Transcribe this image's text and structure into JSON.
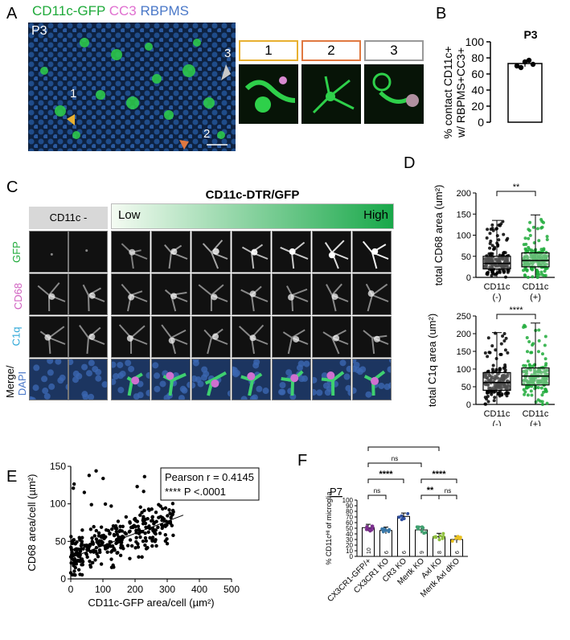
{
  "panelA": {
    "label": "A",
    "channels": [
      {
        "text": "CD11c-GFP",
        "color": "#1faa3a"
      },
      {
        "text": "CC3",
        "color": "#e070d0"
      },
      {
        "text": "RBPMS",
        "color": "#4a78c8"
      }
    ],
    "age": "P3",
    "arrows": [
      "1",
      "2",
      "3"
    ],
    "insets": [
      {
        "label": "1",
        "color": "#e8b030"
      },
      {
        "label": "2",
        "color": "#e07840"
      },
      {
        "label": "3",
        "color": "#999999"
      }
    ]
  },
  "panelB": {
    "label": "B",
    "chart_data": {
      "type": "bar",
      "title": "P3",
      "categories": [
        ""
      ],
      "values": [
        73
      ],
      "points": [
        70,
        68,
        75,
        77,
        72
      ],
      "ylabel_line1": "% contact CD11c+",
      "ylabel_line2": "w/ RBPMS+CC3+",
      "ylim": [
        0,
        100
      ],
      "yticks": [
        0,
        20,
        40,
        60,
        80,
        100
      ]
    }
  },
  "panelC": {
    "label": "C",
    "header": "CD11c-DTR/GFP",
    "neg": "CD11c -",
    "low": "Low",
    "high": "High",
    "rows": [
      {
        "text": "GFP",
        "color": "#1faa3a"
      },
      {
        "text": "CD68",
        "color": "#d060c0"
      },
      {
        "text": "C1q",
        "color": "#30a8d8"
      },
      {
        "text": "Merge/",
        "color": "#000000"
      },
      {
        "text": "DAPI",
        "color": "#4a78c8"
      }
    ]
  },
  "panelD": {
    "label": "D",
    "chart_data": [
      {
        "type": "box",
        "ylabel": "total CD68 area (um²)",
        "ylim": [
          0,
          200
        ],
        "yticks": [
          0,
          50,
          100,
          150,
          200
        ],
        "categories": [
          "CD11c (-)",
          "CD11c (+)"
        ],
        "cat_line1": [
          "CD11c",
          "CD11c"
        ],
        "cat_line2": [
          "(-)",
          "(+)"
        ],
        "boxes": [
          {
            "min": 0,
            "q1": 20,
            "median": 33,
            "q3": 50,
            "max": 135,
            "color": "#000000"
          },
          {
            "min": 0,
            "q1": 25,
            "median": 40,
            "q3": 58,
            "max": 148,
            "color": "#1faa3a"
          }
        ],
        "sig": "**"
      },
      {
        "type": "box",
        "ylabel": "total C1q area (um²)",
        "ylim": [
          0,
          250
        ],
        "yticks": [
          0,
          50,
          100,
          150,
          200,
          250
        ],
        "categories": [
          "CD11c (-)",
          "CD11c (+)"
        ],
        "cat_line1": [
          "CD11c",
          "CD11c"
        ],
        "cat_line2": [
          "(-)",
          "(+)"
        ],
        "boxes": [
          {
            "min": 0,
            "q1": 40,
            "median": 62,
            "q3": 90,
            "max": 203,
            "color": "#000000"
          },
          {
            "min": 0,
            "q1": 55,
            "median": 80,
            "q3": 103,
            "max": 230,
            "color": "#1faa3a"
          }
        ],
        "sig": "****"
      }
    ]
  },
  "panelE": {
    "label": "E",
    "chart_data": {
      "type": "scatter",
      "xlabel": "CD11c-GFP area/cell (µm²)",
      "ylabel": "CD68 area/cell (µm²)",
      "xlim": [
        0,
        500
      ],
      "ylim": [
        0,
        150
      ],
      "xticks": [
        0,
        100,
        200,
        300,
        400,
        500
      ],
      "yticks": [
        0,
        50,
        100,
        150
      ],
      "fit": {
        "x": [
          0,
          350
        ],
        "y": [
          28,
          85
        ]
      },
      "annotation_line1": "Pearson r = 0.4145",
      "annotation_line2": "**** P <.0001"
    }
  },
  "panelF": {
    "label": "F",
    "chart_data": {
      "type": "bar",
      "title": "P7",
      "ylabel": "% CD11cᴴᴵ of microglia",
      "ylim": [
        0,
        100
      ],
      "yticks": [
        0,
        10,
        20,
        30,
        40,
        50,
        60,
        70,
        80,
        90,
        100
      ],
      "categories": [
        "CX3CR1-GFP/+",
        "CX3CR1 KO",
        "CR3 KO",
        "Mertk KO",
        "Axl KO",
        "Mertk Axl dKO"
      ],
      "values": [
        51,
        46,
        71,
        47,
        35,
        30
      ],
      "n": [
        "10",
        "6",
        "6",
        "9",
        "8",
        "6"
      ],
      "colors": [
        "#7b2f8e",
        "#3a78a8",
        "#3050a0",
        "#40a070",
        "#90c040",
        "#e8c020"
      ],
      "brackets": [
        {
          "from": 0,
          "to": 1,
          "label": "ns",
          "level": 0
        },
        {
          "from": 0,
          "to": 2,
          "label": "****",
          "level": 1
        },
        {
          "from": 0,
          "to": 3,
          "label": "ns",
          "level": 2
        },
        {
          "from": 0,
          "to": 4,
          "label": "****",
          "level": 3
        },
        {
          "from": 0,
          "to": 5,
          "label": "****",
          "level": 4
        },
        {
          "from": 3,
          "to": 4,
          "label": "**",
          "level": 0
        },
        {
          "from": 4,
          "to": 5,
          "label": "ns",
          "level": 0
        },
        {
          "from": 3,
          "to": 5,
          "label": "****",
          "level": 1
        }
      ]
    }
  }
}
